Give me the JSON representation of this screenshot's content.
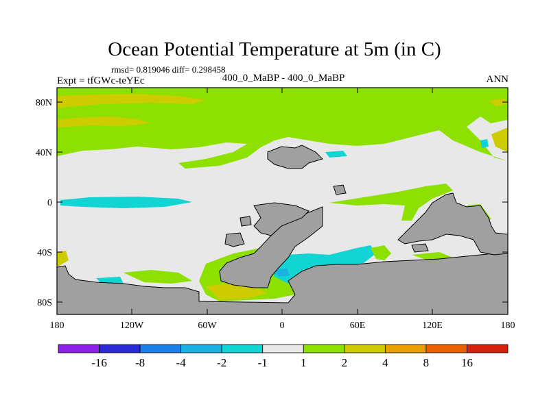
{
  "title": "Ocean Potential Temperature at 5m (in C)",
  "stats": "rmsd= 0.819046 diff= 0.298458",
  "experiment": "Expt = tfGWc-teYEc",
  "comparison": "400_0_MaBP - 400_0_MaBP",
  "season": "ANN",
  "lat_ticks": [
    "80N",
    "40N",
    "0",
    "40S",
    "80S"
  ],
  "lon_ticks": [
    "180",
    "120W",
    "60W",
    "0",
    "60E",
    "120E",
    "180"
  ],
  "colorbar": {
    "labels": [
      "-16",
      "-8",
      "-4",
      "-2",
      "-1",
      "1",
      "2",
      "4",
      "8",
      "16"
    ],
    "colors": [
      "#8a1fe8",
      "#2b2bd6",
      "#1f7fe8",
      "#19b2e0",
      "#12d4d2",
      "#e8e8e8",
      "#8ee000",
      "#cccc00",
      "#e8a000",
      "#e86000",
      "#d52010"
    ]
  },
  "colors": {
    "ocean_neutral": "#e8e8e8",
    "land": "#a0a0a0",
    "warm_1": "#8ee000",
    "warm_2": "#cccc00",
    "warm_3": "#e8a000",
    "cool_1": "#12d4d2",
    "cool_2": "#19b2e0"
  }
}
